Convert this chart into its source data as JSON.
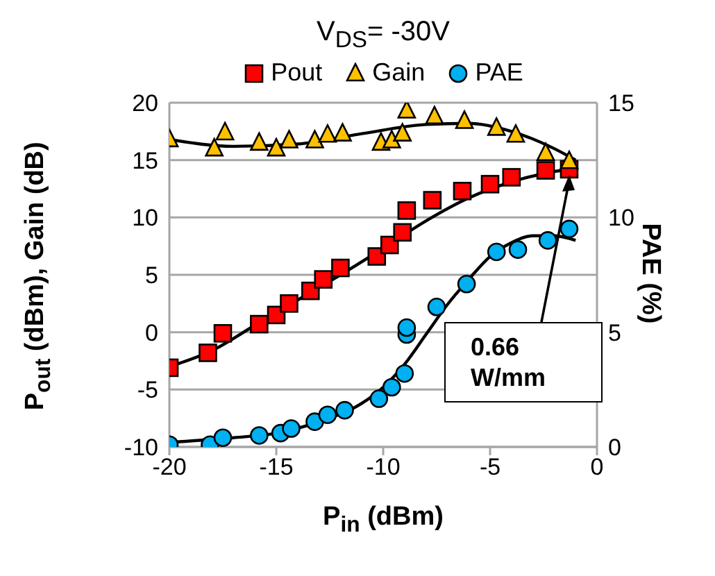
{
  "chart_data": {
    "type": "scatter",
    "title": "V$_{DS}$= -30V",
    "xlabel": "P$_{in}$ (dBm)",
    "ylabel": "P$_{out}$ (dBm), Gain (dB)",
    "y2label": "PAE (%)",
    "xlim": [
      -20,
      0
    ],
    "xticks": [
      -20,
      -15,
      -10,
      -5,
      0
    ],
    "ylim": [
      -10,
      20
    ],
    "yticks": [
      -10,
      -5,
      0,
      5,
      10,
      15,
      20
    ],
    "y2lim": [
      0,
      15
    ],
    "y2ticks": [
      0,
      5,
      10,
      15
    ],
    "grid": "y",
    "legend": "top",
    "annotations": [
      {
        "text": "0.66 W/mm",
        "x": -1.3,
        "y": 14.2
      }
    ],
    "series": [
      {
        "name": "Pout",
        "marker": "square",
        "color": "#ff0000",
        "x": [
          -20,
          -18.2,
          -17.5,
          -15.8,
          -15,
          -14.4,
          -13.4,
          -12.8,
          -12,
          -10.3,
          -9.7,
          -9.1,
          -8.9,
          -7.7,
          -6.3,
          -5,
          -4,
          -2.4,
          -1.3
        ],
        "values": [
          -3.1,
          -1.8,
          -0.1,
          0.7,
          1.5,
          2.5,
          3.6,
          4.6,
          5.6,
          6.6,
          7.6,
          8.7,
          10.6,
          11.5,
          12.3,
          12.9,
          13.5,
          14.1,
          14.2
        ]
      },
      {
        "name": "Gain",
        "marker": "triangle",
        "color": "#ffc000",
        "x": [
          -20,
          -17.9,
          -17.4,
          -15.8,
          -15,
          -14.4,
          -13.2,
          -12.6,
          -11.9,
          -10.1,
          -9.6,
          -9.1,
          -8.9,
          -7.6,
          -6.2,
          -4.7,
          -3.8,
          -2.4,
          -1.3
        ],
        "values": [
          16.8,
          16,
          17.4,
          16.5,
          16,
          16.7,
          16.7,
          17.2,
          17.3,
          16.5,
          16.7,
          17.3,
          19.3,
          18.8,
          18.4,
          17.8,
          17.2,
          15.6,
          14.9
        ]
      },
      {
        "name": "PAE",
        "marker": "circle",
        "axis": "y2",
        "color": "#00b0f0",
        "x": [
          -20,
          -18.1,
          -17.5,
          -15.8,
          -14.8,
          -14.3,
          -13.2,
          -12.6,
          -11.8,
          -10.2,
          -9.6,
          -9,
          -8.9,
          -8.9,
          -7.5,
          -6.1,
          -4.7,
          -3.7,
          -2.3,
          -1.3
        ],
        "values": [
          0.1,
          0.1,
          0.4,
          0.5,
          0.6,
          0.8,
          1.1,
          1.4,
          1.6,
          2.1,
          2.6,
          3.2,
          4.9,
          5.2,
          6.1,
          7.1,
          8.5,
          8.6,
          9,
          9.5
        ]
      },
      {
        "type": "line",
        "color": "#000000",
        "x": [
          -20,
          -18,
          -16,
          -14,
          -12,
          -10,
          -8,
          -6,
          -4,
          -2,
          -1
        ],
        "values": [
          -3,
          -1.6,
          0.6,
          2.8,
          5,
          7.3,
          9.7,
          11.7,
          13.1,
          14,
          14.3
        ]
      },
      {
        "type": "line",
        "color": "#000000",
        "x": [
          -20,
          -17,
          -14,
          -11,
          -8,
          -6,
          -4,
          -2,
          -1
        ],
        "values": [
          16.8,
          16.2,
          16.4,
          17.3,
          18.1,
          18.2,
          17.5,
          16,
          15
        ]
      },
      {
        "type": "line",
        "color": "#000000",
        "axis": "y2",
        "x": [
          -20,
          -17,
          -15,
          -13,
          -11,
          -10,
          -9,
          -8,
          -7,
          -6,
          -5,
          -4,
          -3,
          -2,
          -1
        ],
        "values": [
          0.2,
          0.4,
          0.6,
          1.1,
          1.9,
          2.6,
          3.6,
          4.9,
          6.2,
          7.3,
          8.3,
          8.9,
          9.2,
          9.2,
          9
        ]
      }
    ]
  }
}
